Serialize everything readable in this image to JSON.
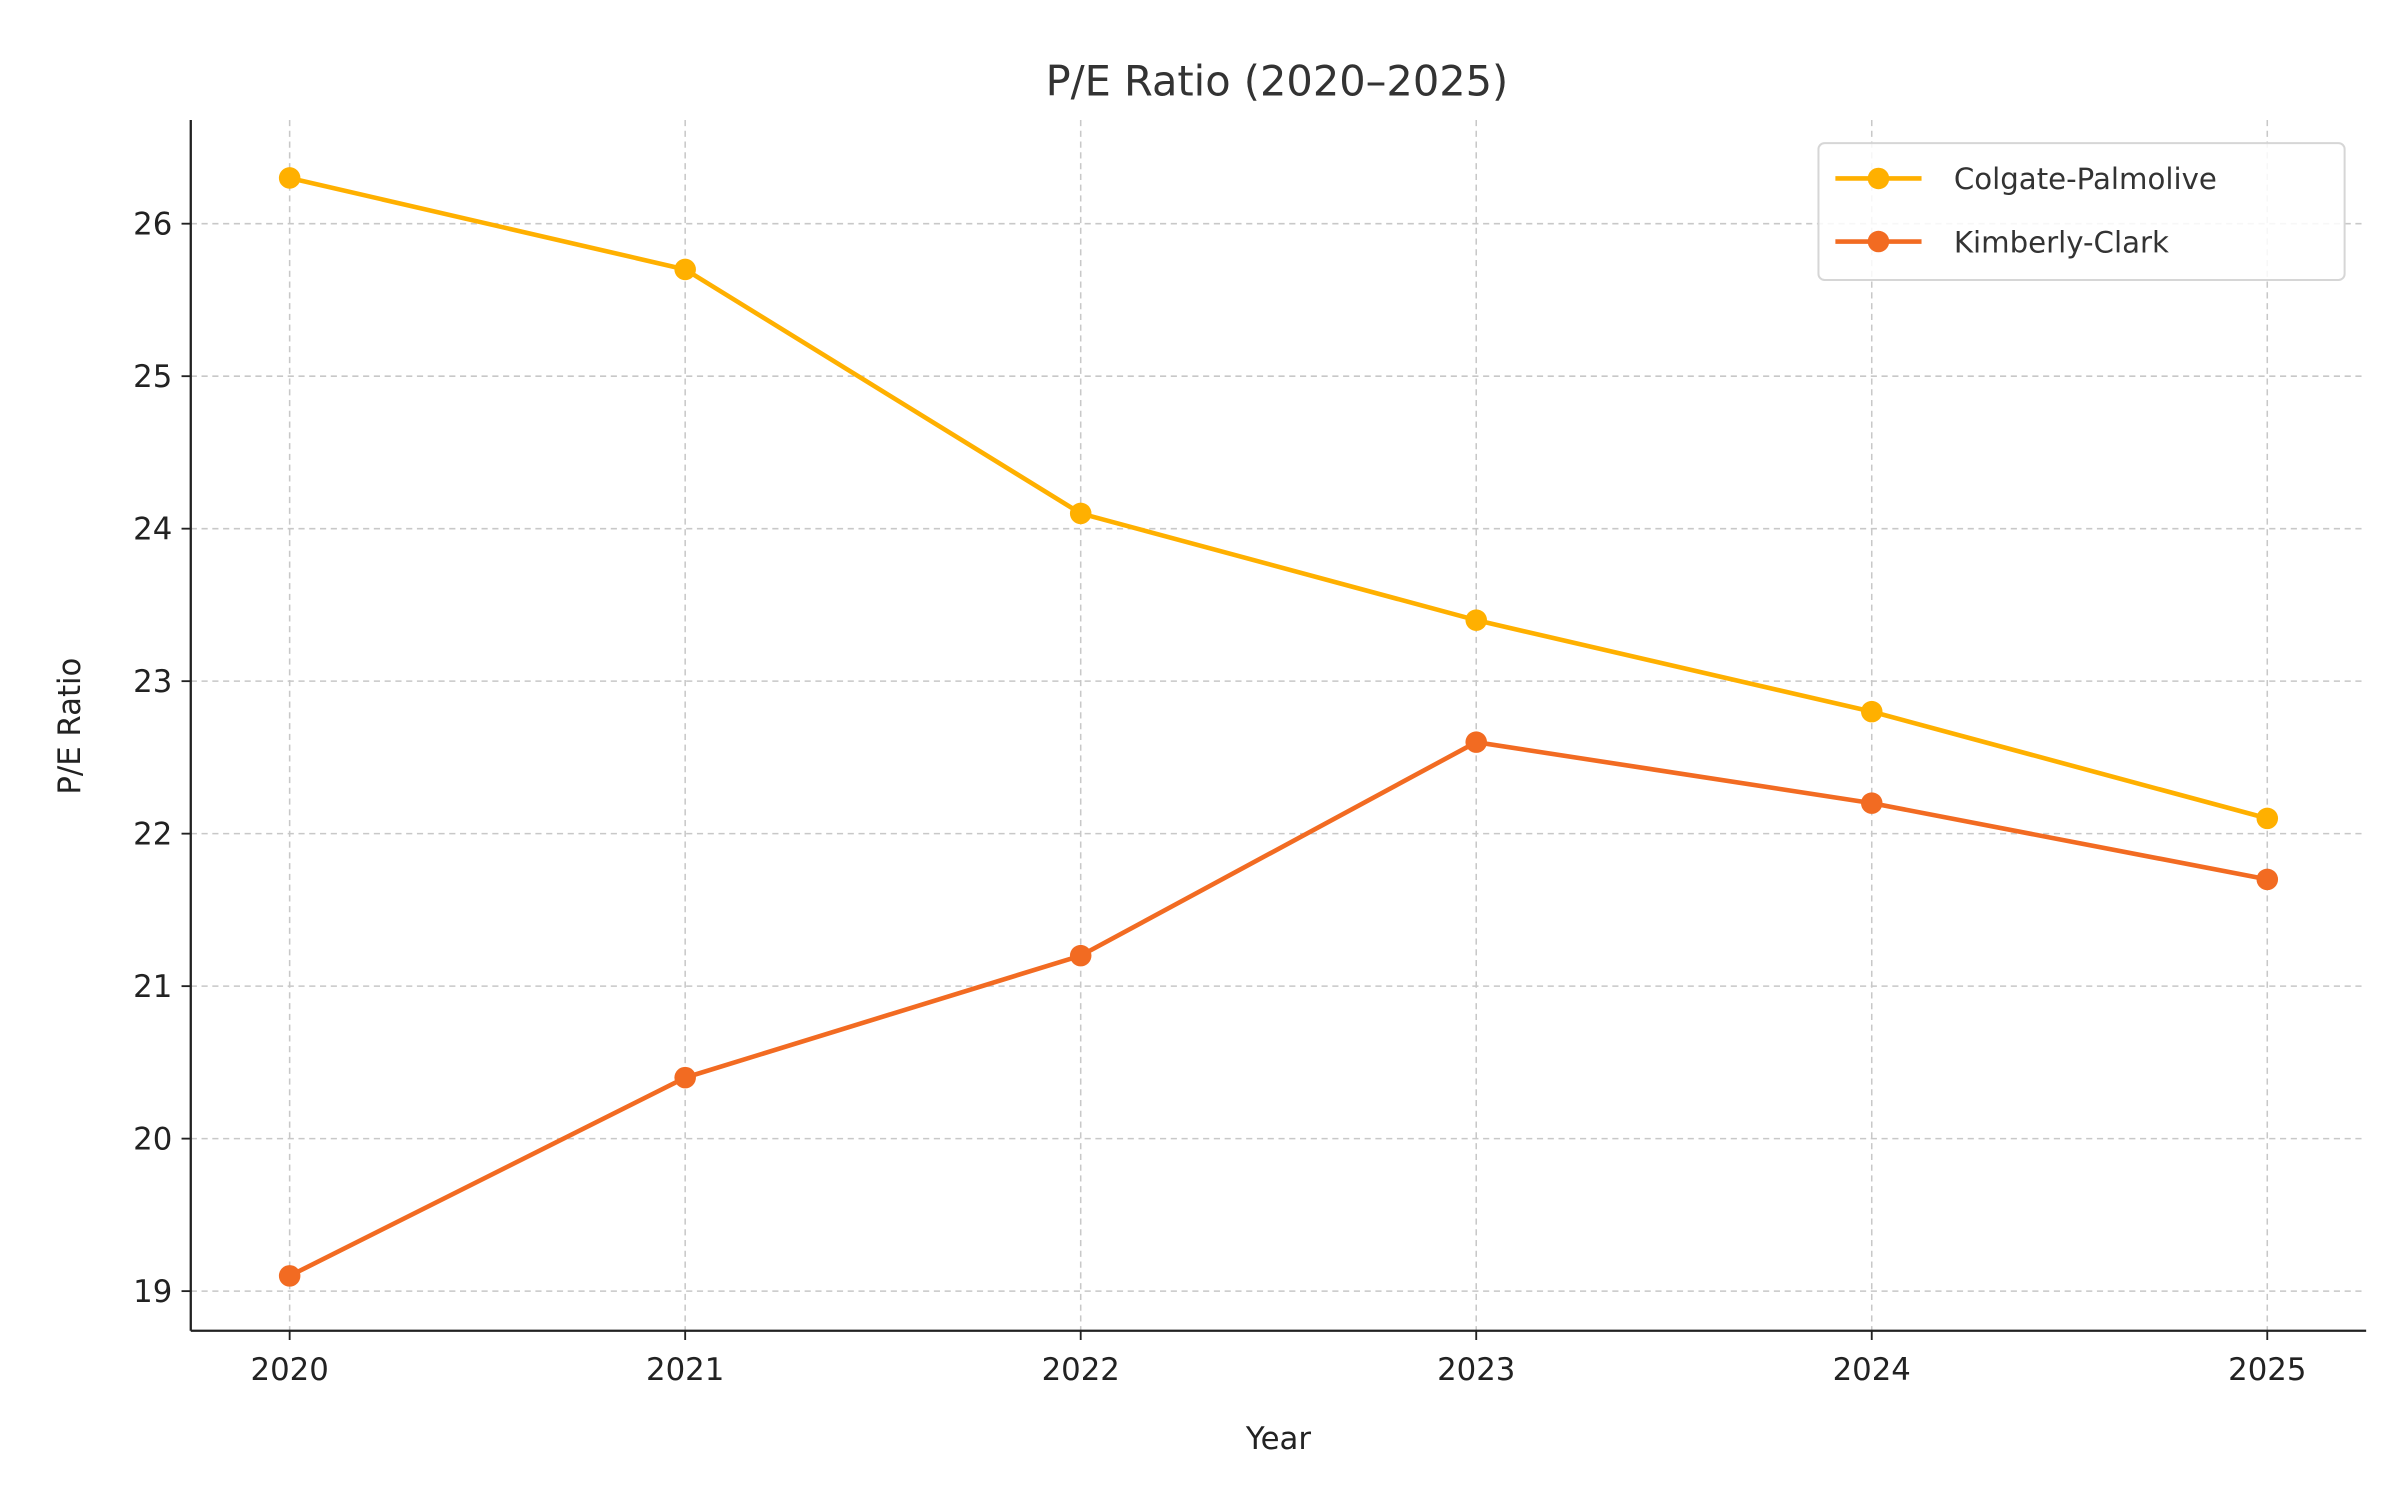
{
  "chart_data": {
    "type": "line",
    "title": "P/E Ratio (2020–2025)",
    "xlabel": "Year",
    "ylabel": "P/E Ratio",
    "x": [
      2020,
      2021,
      2022,
      2023,
      2024,
      2025
    ],
    "x_tick_labels": [
      "2020",
      "2021",
      "2022",
      "2023",
      "2024",
      "2025"
    ],
    "y_ticks": [
      19,
      20,
      21,
      22,
      23,
      24,
      25,
      26
    ],
    "y_tick_labels": [
      "19",
      "20",
      "21",
      "22",
      "23",
      "24",
      "25",
      "26"
    ],
    "xlim": [
      2019.75,
      2025.25
    ],
    "ylim": [
      18.74,
      26.68
    ],
    "grid": true,
    "legend_position": "top-right",
    "series": [
      {
        "name": "Colgate-Palmolive",
        "color": "#FFB000",
        "marker": "circle",
        "values": [
          26.3,
          25.7,
          24.1,
          23.4,
          22.8,
          22.1
        ]
      },
      {
        "name": "Kimberly-Clark",
        "color": "#F26B22",
        "marker": "circle",
        "values": [
          19.1,
          20.4,
          21.2,
          22.6,
          22.2,
          21.7
        ]
      }
    ]
  }
}
